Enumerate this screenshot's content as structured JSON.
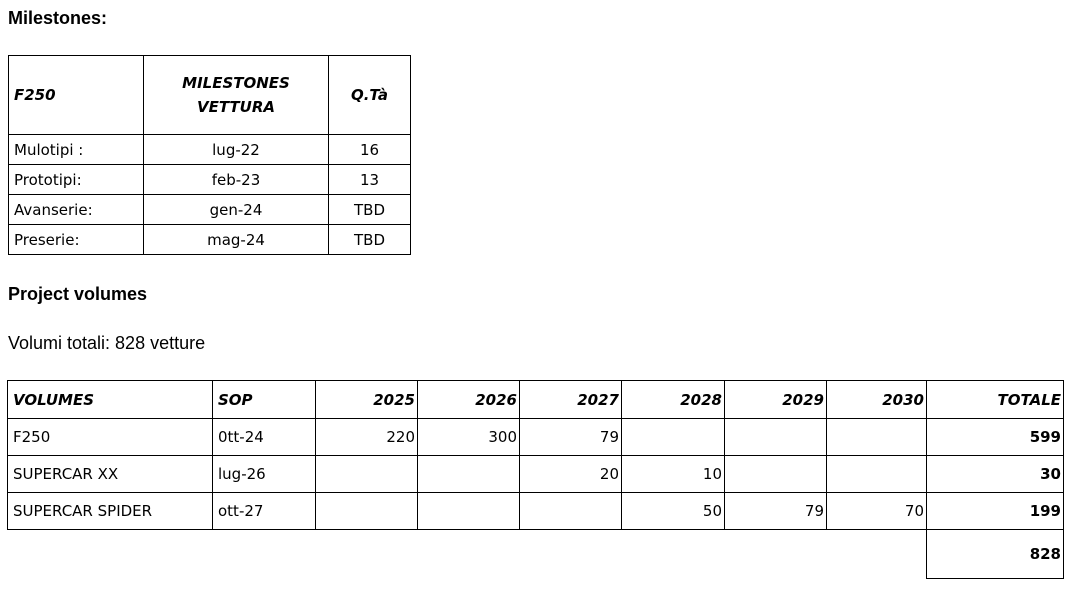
{
  "milestones_title": "Milestones:",
  "milestones_table": {
    "header": [
      "F250",
      "MILESTONES VETTURA",
      "Q.Tà"
    ],
    "rows": [
      [
        "Mulotipi :",
        "lug-22",
        16
      ],
      [
        "Prototipi:",
        "feb-23",
        13
      ],
      [
        "Avanserie:",
        "gen-24",
        "TBD"
      ],
      [
        "Preserie:",
        "mag-24",
        "TBD"
      ]
    ]
  },
  "volumes_title": "Project volumes",
  "volumes_summary": "Volumi totali: 828 vetture",
  "volumes_table": {
    "header": [
      "VOLUMES",
      "SOP",
      "2025",
      "2026",
      "2027",
      "2028",
      "2029",
      "2030",
      "TOTALE"
    ],
    "rows": [
      [
        "F250",
        "0tt-24",
        220,
        300,
        79,
        null,
        null,
        null,
        599
      ],
      [
        "SUPERCAR XX",
        "lug-26",
        null,
        null,
        20,
        10,
        null,
        null,
        30
      ],
      [
        "SUPERCAR SPIDER",
        "ott-27",
        null,
        null,
        null,
        50,
        79,
        70,
        199
      ],
      [
        null,
        null,
        null,
        null,
        null,
        null,
        null,
        null,
        828
      ]
    ]
  }
}
